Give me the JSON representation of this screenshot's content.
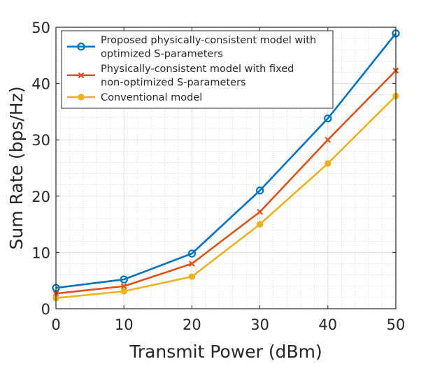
{
  "chart_data": {
    "type": "line",
    "title": "",
    "xlabel": "Transmit Power (dBm)",
    "ylabel": "Sum Rate (bps/Hz)",
    "xlim": [
      0,
      50
    ],
    "ylim": [
      0,
      50
    ],
    "xticks": [
      0,
      10,
      20,
      30,
      40,
      50
    ],
    "yticks": [
      0,
      10,
      20,
      30,
      40,
      50
    ],
    "grid": "major and minor",
    "legend_position": "top-left",
    "x": [
      0,
      10,
      20,
      30,
      40,
      50
    ],
    "series": [
      {
        "name": "Proposed physically-consistent model with optimized S-parameters",
        "legend_lines": [
          "Proposed physically-consistent model with",
          "optimized S-parameters"
        ],
        "values": [
          3.7,
          5.2,
          9.8,
          21.0,
          33.8,
          48.9
        ],
        "color": "#0072BD",
        "marker": "circle"
      },
      {
        "name": "Physically-consistent model with fixed non-optimized S-parameters",
        "legend_lines": [
          "Physically-consistent model with fixed",
          "non-optimized S-parameters"
        ],
        "values": [
          2.7,
          4.0,
          8.0,
          17.2,
          30.0,
          42.3
        ],
        "color": "#D95319",
        "marker": "x"
      },
      {
        "name": "Conventional model",
        "legend_lines": [
          "Conventional model"
        ],
        "values": [
          1.9,
          3.1,
          5.7,
          15.0,
          25.8,
          37.8
        ],
        "color": "#EDB120",
        "marker": "dot"
      }
    ]
  }
}
